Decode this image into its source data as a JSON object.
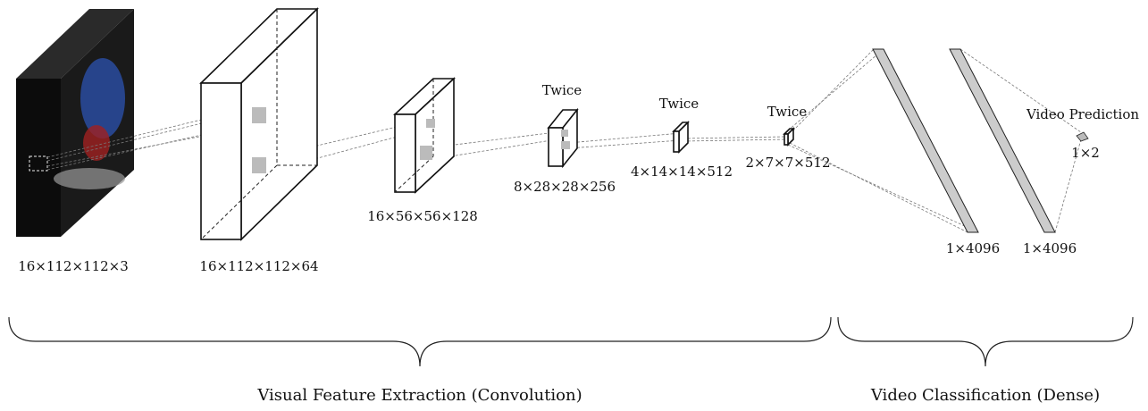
{
  "layers": [
    {
      "label": "16×112×112×3"
    },
    {
      "label": "16×112×112×64"
    },
    {
      "label": "16×56×56×128"
    },
    {
      "repeat": "Twice",
      "label": "8×28×28×256"
    },
    {
      "repeat": "Twice",
      "label": "4×14×14×512"
    },
    {
      "repeat": "Twice",
      "label": "2×7×7×512"
    }
  ],
  "dense": [
    {
      "label": "1×4096"
    },
    {
      "label": "1×4096"
    }
  ],
  "output": {
    "title": "Video Prediction",
    "label": "1×2"
  },
  "sections": [
    {
      "label": "Visual Feature Extraction (Convolution)"
    },
    {
      "label": "Video Classification (Dense)"
    }
  ]
}
